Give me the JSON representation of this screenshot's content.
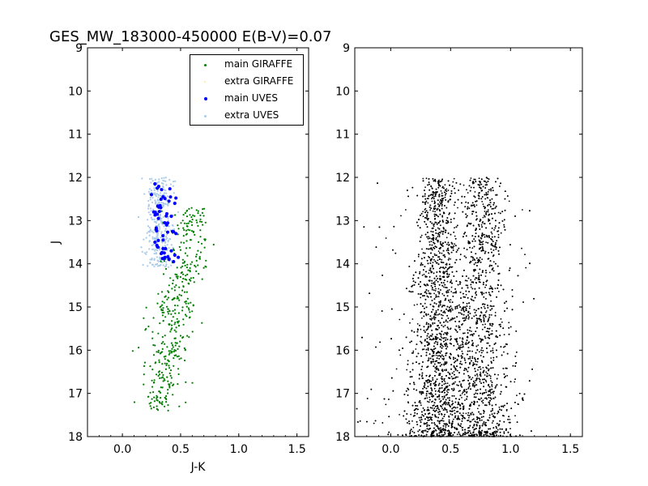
{
  "title": "GES_MW_183000-450000 E(B-V)=0.07",
  "colors": {
    "main_giraffe": "#007f00",
    "extra_giraffe": "#ffe38a",
    "main_uves": "#0000ff",
    "extra_uves": "#a9cbe8",
    "field": "#000000"
  },
  "chart_data": [
    {
      "type": "scatter",
      "xlabel": "J-K",
      "ylabel": "J",
      "xlim": [
        -0.3,
        1.6
      ],
      "ylim": [
        18,
        9
      ],
      "y_inverted": true,
      "xticks": [
        "0.0",
        "0.5",
        "1.0",
        "1.5"
      ],
      "yticks": [
        "9",
        "10",
        "11",
        "12",
        "13",
        "14",
        "15",
        "16",
        "17",
        "18"
      ],
      "legend_position": "top-right",
      "legend": [
        "main GIRAFFE",
        "extra GIRAFFE",
        "main UVES",
        "extra UVES"
      ],
      "series": [
        {
          "name": "main GIRAFFE",
          "note_points": "approx. 400 points scattered along the sequence",
          "points_summary": {
            "x_range": [
              0.1,
              0.73
            ],
            "y_range": [
              12.7,
              17.4
            ]
          },
          "sample_points": [
            [
              0.55,
              12.7
            ],
            [
              0.6,
              12.75
            ],
            [
              0.72,
              12.8
            ],
            [
              0.68,
              13.2
            ],
            [
              0.58,
              13.8
            ],
            [
              0.73,
              14.0
            ],
            [
              0.7,
              14.6
            ],
            [
              0.62,
              14.8
            ],
            [
              0.45,
              14.5
            ],
            [
              0.4,
              15.0
            ],
            [
              0.3,
              15.6
            ],
            [
              0.2,
              16.0
            ],
            [
              0.15,
              16.8
            ],
            [
              0.1,
              17.3
            ],
            [
              0.4,
              17.2
            ],
            [
              0.45,
              16.5
            ],
            [
              0.35,
              15.2
            ]
          ]
        },
        {
          "name": "extra GIRAFFE",
          "points_summary": {
            "x_range": [
              0.2,
              0.6
            ],
            "y_range": [
              12.0,
              18.0
            ]
          }
        },
        {
          "name": "main UVES",
          "sample_points": [
            [
              0.28,
              12.15
            ],
            [
              0.3,
              12.25
            ],
            [
              0.25,
              12.4
            ],
            [
              0.35,
              12.45
            ],
            [
              0.4,
              12.55
            ],
            [
              0.33,
              12.7
            ],
            [
              0.45,
              12.6
            ],
            [
              0.27,
              12.8
            ],
            [
              0.31,
              12.95
            ],
            [
              0.42,
              12.9
            ],
            [
              0.38,
              13.1
            ],
            [
              0.29,
              13.2
            ],
            [
              0.43,
              13.25
            ],
            [
              0.46,
              13.3
            ],
            [
              0.35,
              13.45
            ],
            [
              0.28,
              13.5
            ],
            [
              0.37,
              13.65
            ],
            [
              0.42,
              13.7
            ],
            [
              0.45,
              13.8
            ],
            [
              0.48,
              13.85
            ],
            [
              0.4,
              13.9
            ],
            [
              0.36,
              13.75
            ],
            [
              0.44,
              13.95
            ]
          ]
        },
        {
          "name": "extra UVES",
          "points_summary": {
            "x_range": [
              0.22,
              0.52
            ],
            "y_range": [
              12.0,
              14.1
            ]
          }
        }
      ]
    },
    {
      "type": "scatter",
      "xlabel": "",
      "ylabel": "",
      "xlim": [
        -0.3,
        1.6
      ],
      "ylim": [
        18,
        9
      ],
      "y_inverted": true,
      "xticks": [
        "0.0",
        "0.5",
        "1.0",
        "1.5"
      ],
      "yticks": [
        "9",
        "10",
        "11",
        "12",
        "13",
        "14",
        "15",
        "16",
        "17",
        "18"
      ],
      "series": [
        {
          "name": "",
          "points_summary": {
            "x_range": [
              -0.3,
              1.2
            ],
            "y_range": [
              12.0,
              18.0
            ],
            "approx_count": 8000
          },
          "density_centers": [
            0.4,
            0.78
          ]
        }
      ]
    }
  ]
}
